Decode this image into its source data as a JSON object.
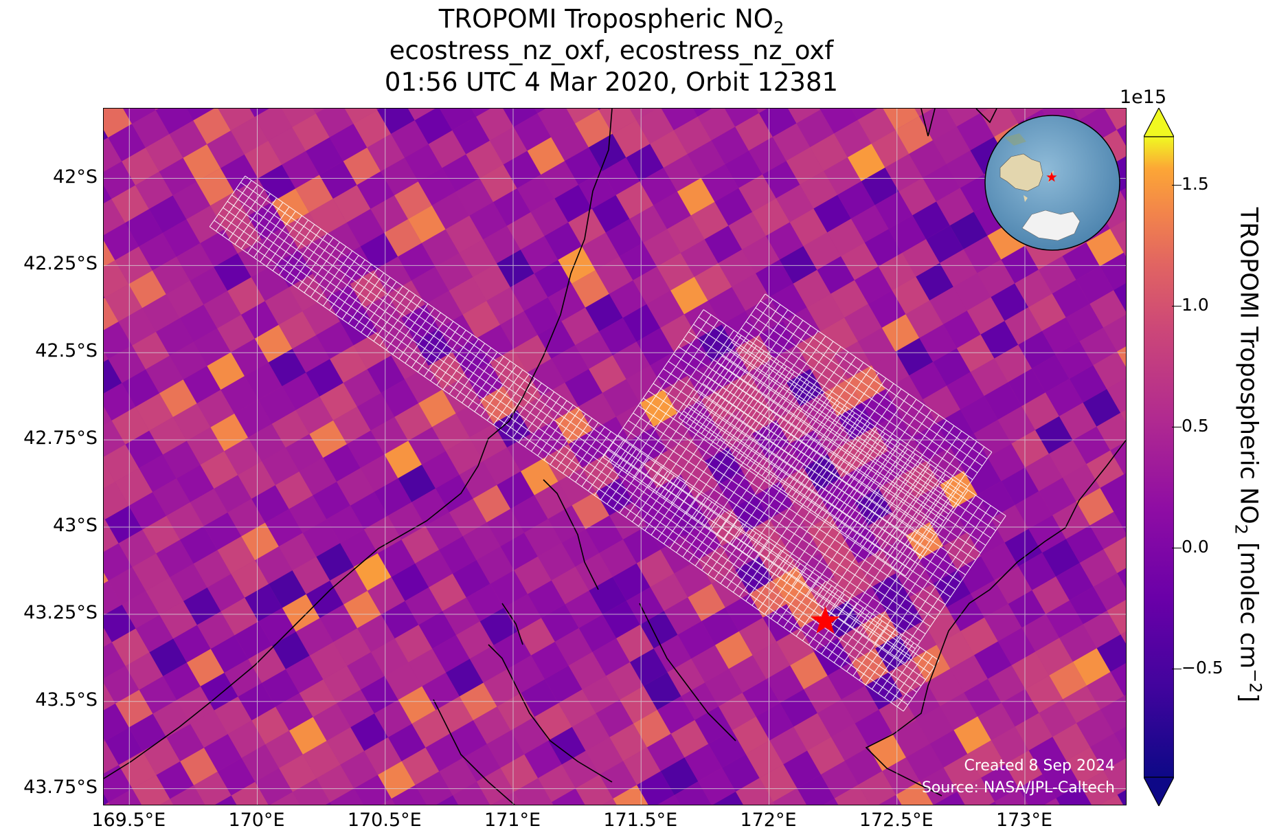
{
  "title": {
    "line1_main": "TROPOMI Tropospheric NO",
    "line1_sub": "2",
    "line2": "ecostress_nz_oxf, ecostress_nz_oxf",
    "line3": "01:56 UTC 4 Mar 2020, Orbit 12381"
  },
  "map": {
    "lat_range": [
      -43.8,
      -41.8
    ],
    "lon_range": [
      169.4,
      173.4
    ],
    "lat_ticks": [
      "42°S",
      "42.25°S",
      "42.5°S",
      "42.75°S",
      "43°S",
      "43.25°S",
      "43.5°S",
      "43.75°S"
    ],
    "lat_values": [
      -42.0,
      -42.25,
      -42.5,
      -42.75,
      -43.0,
      -43.25,
      -43.5,
      -43.75
    ],
    "lon_ticks": [
      "169.5°E",
      "170°E",
      "170.5°E",
      "171°E",
      "171.5°E",
      "172°E",
      "172.5°E",
      "173°E"
    ],
    "lon_values": [
      169.5,
      170.0,
      170.5,
      171.0,
      171.5,
      172.0,
      172.5,
      173.0
    ],
    "target_marker": {
      "lon": 172.22,
      "lat": -43.27,
      "color": "#ff0000",
      "symbol": "star"
    },
    "background_field": "TROPOMI tropospheric NO2 pixels (plasma colormap)",
    "overlay": "ECOSTRESS swath grid (white outline)"
  },
  "credit": {
    "created": "Created 8 Sep 2024",
    "source": "Source: NASA/JPL-Caltech"
  },
  "colorbar": {
    "exponent": "1e15",
    "label_main": "TROPOMI Tropospheric NO",
    "label_sub": "2",
    "label_units_pre": " [molec cm",
    "label_units_sup": "−2",
    "label_units_post": "]",
    "ticks": [
      "1.5",
      "1.0",
      "0.5",
      "0.0",
      "−0.5"
    ],
    "tick_values": [
      1.5,
      1.0,
      0.5,
      0.0,
      -0.5
    ],
    "range": [
      -0.95,
      1.7
    ],
    "colormap": "plasma",
    "extend": "both"
  },
  "inset_globe": {
    "ocean_color": "#6fa3c6",
    "land_color": "#e8dcb8",
    "marker_color": "#ff0000"
  }
}
